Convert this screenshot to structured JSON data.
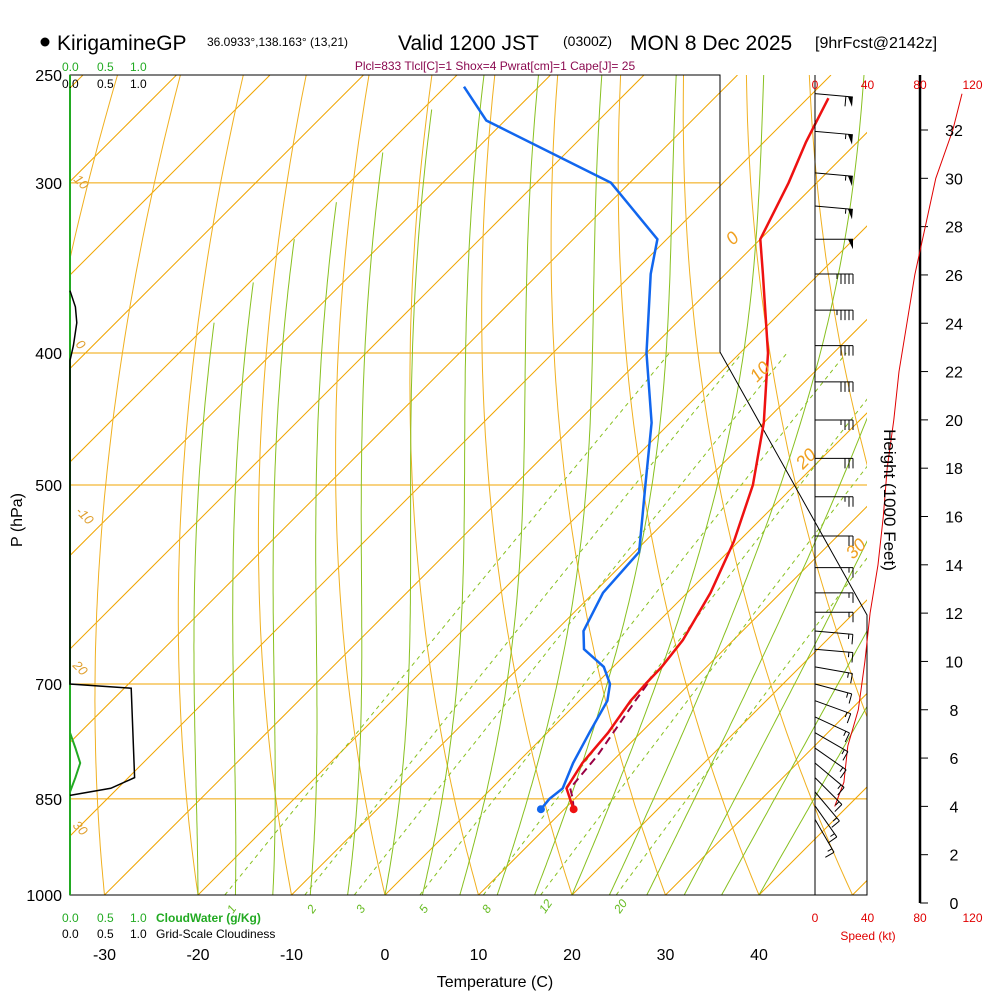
{
  "header": {
    "station": "KirigamineGP",
    "coords": "36.0933°,138.163° (13,21)",
    "valid": "Valid 1200 JST",
    "zulu": "(0300Z)",
    "date": "MON 8 Dec 2025",
    "forecast": "[9hrFcst@2142z]"
  },
  "indices_line": "Plcl=833 Tlcl[C]=1 Shox=4 Pwrat[cm]=1 Cape[J]= 25",
  "axes": {
    "xlabel": "Temperature (C)",
    "ylabel": "P (hPa)",
    "height_label": "Height (1000 Feet)",
    "speed_label": "Speed (kt)",
    "cloudwater_label": "CloudWater (g/Kg)",
    "cloudiness_label": "Grid-Scale Cloudiness"
  },
  "colors": {
    "temperature": "#ee1111",
    "dewpoint": "#1166ee",
    "parcel": "#990044",
    "isotherm": "#f0a500",
    "isobar": "#f0a500",
    "dry_adiabat": "#f0b020",
    "moist_adiabat": "#88c020",
    "mixing_ratio": "#88c020",
    "cloudwater": "#22aa22",
    "cloudiness": "#000000",
    "wind_speed": "#e00000"
  },
  "chart_data": {
    "type": "skewt",
    "title": "KirigamineGP Valid 1200 JST (0300Z) MON 8 Dec 2025",
    "temp_axis": {
      "min": -35,
      "max": 45,
      "ticks": [
        -30,
        -20,
        -10,
        0,
        10,
        20,
        30,
        40
      ],
      "unit": "C"
    },
    "pressure_axis": {
      "bottom": 1000,
      "top": 250,
      "labels": [
        250,
        300,
        400,
        500,
        700,
        850,
        1000
      ],
      "unit": "hPa"
    },
    "height_axis": {
      "min_kft": 0,
      "max_kft": 32,
      "ticks": [
        0,
        2,
        4,
        6,
        8,
        10,
        12,
        14,
        16,
        18,
        20,
        22,
        24,
        26,
        28,
        30,
        32
      ]
    },
    "speed_axis": {
      "ticks": [
        0,
        40,
        80,
        120
      ],
      "unit": "kt"
    },
    "cloud_axis_ticks": [
      "0.0",
      "0.5",
      "1.0"
    ],
    "isotherm_labels": [
      "0",
      "10",
      "20",
      "30"
    ],
    "dry_adiabat_labels": [
      "10",
      "0",
      "-10",
      "20",
      "30"
    ],
    "mixing_ratio_labels": [
      "1",
      "2",
      "3",
      "5",
      "8",
      "12",
      "20"
    ],
    "temperature_profile": [
      {
        "p": 865,
        "t": 11.0
      },
      {
        "p": 850,
        "t": 9.5
      },
      {
        "p": 835,
        "t": 8.0
      },
      {
        "p": 800,
        "t": 7.0
      },
      {
        "p": 760,
        "t": 6.5
      },
      {
        "p": 720,
        "t": 5.5
      },
      {
        "p": 700,
        "t": 5.3
      },
      {
        "p": 680,
        "t": 5.2
      },
      {
        "p": 650,
        "t": 4.6
      },
      {
        "p": 600,
        "t": 2.5
      },
      {
        "p": 550,
        "t": -0.5
      },
      {
        "p": 500,
        "t": -4.5
      },
      {
        "p": 450,
        "t": -10.0
      },
      {
        "p": 400,
        "t": -17.0
      },
      {
        "p": 350,
        "t": -26.0
      },
      {
        "p": 330,
        "t": -30.0
      },
      {
        "p": 300,
        "t": -33.0
      },
      {
        "p": 280,
        "t": -35.5
      },
      {
        "p": 260,
        "t": -37.8
      }
    ],
    "dewpoint_profile": [
      {
        "p": 865,
        "t": 7.5
      },
      {
        "p": 850,
        "t": 7.3
      },
      {
        "p": 835,
        "t": 7.6
      },
      {
        "p": 800,
        "t": 6.0
      },
      {
        "p": 760,
        "t": 4.5
      },
      {
        "p": 720,
        "t": 3.0
      },
      {
        "p": 700,
        "t": 1.5
      },
      {
        "p": 680,
        "t": -1.0
      },
      {
        "p": 660,
        "t": -5.0
      },
      {
        "p": 640,
        "t": -7.0
      },
      {
        "p": 600,
        "t": -9.0
      },
      {
        "p": 560,
        "t": -9.5
      },
      {
        "p": 500,
        "t": -16.0
      },
      {
        "p": 450,
        "t": -22.0
      },
      {
        "p": 400,
        "t": -30.0
      },
      {
        "p": 350,
        "t": -38.0
      },
      {
        "p": 330,
        "t": -41.0
      },
      {
        "p": 300,
        "t": -52.0
      },
      {
        "p": 270,
        "t": -72.0
      },
      {
        "p": 255,
        "t": -78.0
      }
    ],
    "parcel_profile": [
      {
        "p": 865,
        "t": 11.0
      },
      {
        "p": 850,
        "t": 9.8
      },
      {
        "p": 835,
        "t": 8.4
      },
      {
        "p": 790,
        "t": 7.8
      },
      {
        "p": 750,
        "t": 6.8
      },
      {
        "p": 720,
        "t": 6.0
      },
      {
        "p": 700,
        "t": 5.5
      }
    ],
    "wind_barbs": [
      {
        "p": 258,
        "dir": 275,
        "spd": 60
      },
      {
        "p": 275,
        "dir": 275,
        "spd": 55
      },
      {
        "p": 295,
        "dir": 275,
        "spd": 55
      },
      {
        "p": 312,
        "dir": 275,
        "spd": 55
      },
      {
        "p": 330,
        "dir": 270,
        "spd": 50
      },
      {
        "p": 350,
        "dir": 270,
        "spd": 45
      },
      {
        "p": 372,
        "dir": 270,
        "spd": 45
      },
      {
        "p": 395,
        "dir": 270,
        "spd": 40
      },
      {
        "p": 420,
        "dir": 270,
        "spd": 40
      },
      {
        "p": 448,
        "dir": 270,
        "spd": 35
      },
      {
        "p": 478,
        "dir": 270,
        "spd": 30
      },
      {
        "p": 510,
        "dir": 270,
        "spd": 25
      },
      {
        "p": 545,
        "dir": 270,
        "spd": 20
      },
      {
        "p": 575,
        "dir": 270,
        "spd": 15
      },
      {
        "p": 600,
        "dir": 270,
        "spd": 15
      },
      {
        "p": 620,
        "dir": 270,
        "spd": 15
      },
      {
        "p": 640,
        "dir": 275,
        "spd": 15
      },
      {
        "p": 660,
        "dir": 275,
        "spd": 15
      },
      {
        "p": 680,
        "dir": 280,
        "spd": 15
      },
      {
        "p": 700,
        "dir": 285,
        "spd": 15
      },
      {
        "p": 720,
        "dir": 290,
        "spd": 15
      },
      {
        "p": 740,
        "dir": 295,
        "spd": 15
      },
      {
        "p": 760,
        "dir": 300,
        "spd": 15
      },
      {
        "p": 780,
        "dir": 305,
        "spd": 15
      },
      {
        "p": 800,
        "dir": 310,
        "spd": 15
      },
      {
        "p": 820,
        "dir": 315,
        "spd": 15
      },
      {
        "p": 840,
        "dir": 320,
        "spd": 15
      },
      {
        "p": 860,
        "dir": 325,
        "spd": 15
      },
      {
        "p": 880,
        "dir": 330,
        "spd": 15
      }
    ],
    "wind_speed_profile": [
      {
        "kft": 4.0,
        "spd": 15
      },
      {
        "kft": 5.0,
        "spd": 22
      },
      {
        "kft": 6.5,
        "spd": 25
      },
      {
        "kft": 8.0,
        "spd": 33
      },
      {
        "kft": 10.0,
        "spd": 38
      },
      {
        "kft": 12.0,
        "spd": 42
      },
      {
        "kft": 14.0,
        "spd": 48
      },
      {
        "kft": 16.0,
        "spd": 52
      },
      {
        "kft": 18.0,
        "spd": 55
      },
      {
        "kft": 20.0,
        "spd": 60
      },
      {
        "kft": 22.0,
        "spd": 64
      },
      {
        "kft": 24.0,
        "spd": 70
      },
      {
        "kft": 26.0,
        "spd": 76
      },
      {
        "kft": 28.0,
        "spd": 84
      },
      {
        "kft": 30.0,
        "spd": 92
      },
      {
        "kft": 32.0,
        "spd": 105
      },
      {
        "kft": 33.5,
        "spd": 112
      }
    ],
    "cloudiness_profile": [
      {
        "p": 360,
        "v": 0.0
      },
      {
        "p": 370,
        "v": 0.08
      },
      {
        "p": 380,
        "v": 0.1
      },
      {
        "p": 395,
        "v": 0.05
      },
      {
        "p": 405,
        "v": 0.0
      },
      {
        "p": 700,
        "v": 0.0
      },
      {
        "p": 705,
        "v": 0.9
      },
      {
        "p": 820,
        "v": 0.95
      },
      {
        "p": 835,
        "v": 0.6
      },
      {
        "p": 845,
        "v": 0.0
      }
    ],
    "cloudwater_profile": [
      {
        "p": 760,
        "v": 0.0
      },
      {
        "p": 780,
        "v": 0.08
      },
      {
        "p": 800,
        "v": 0.15
      },
      {
        "p": 820,
        "v": 0.08
      },
      {
        "p": 840,
        "v": 0.0
      }
    ]
  }
}
